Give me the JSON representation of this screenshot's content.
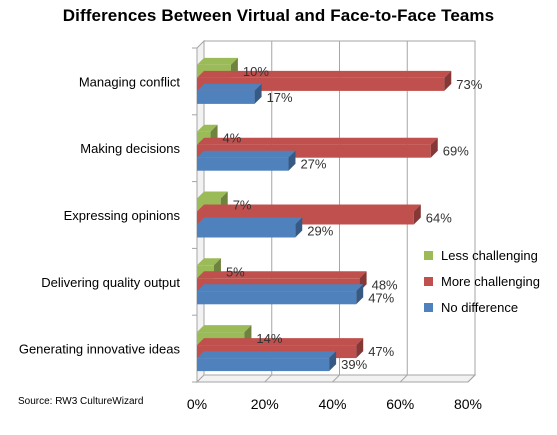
{
  "chart_data": {
    "type": "bar",
    "orientation": "horizontal",
    "title": "Differences Between Virtual and Face-to-Face Teams",
    "categories": [
      "Managing conflict",
      "Making decisions",
      "Expressing opinions",
      "Delivering quality output",
      "Generating innovative ideas"
    ],
    "series": [
      {
        "name": "Less challenging",
        "color": "#9bbb59",
        "values": [
          10,
          4,
          7,
          5,
          14
        ]
      },
      {
        "name": "More challenging",
        "color": "#c0504d",
        "values": [
          73,
          69,
          64,
          48,
          47
        ]
      },
      {
        "name": "No difference",
        "color": "#4f81bd",
        "values": [
          17,
          27,
          29,
          47,
          39
        ]
      }
    ],
    "xlim": [
      0,
      80
    ],
    "xticks": [
      "0%",
      "20%",
      "40%",
      "60%",
      "80%"
    ],
    "value_suffix": "%",
    "grid": true,
    "legend_position": "right",
    "three_d": true
  },
  "source_note": "Source: RW3 CultureWizard"
}
